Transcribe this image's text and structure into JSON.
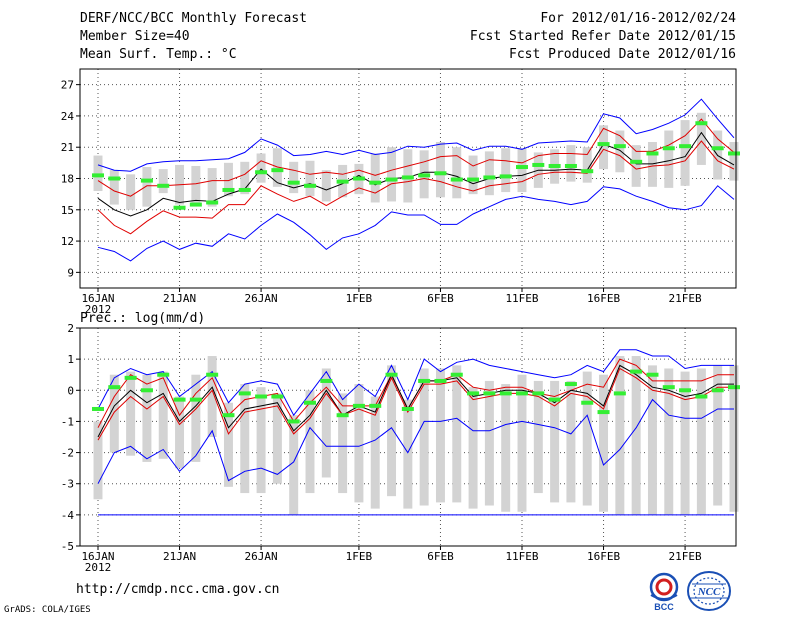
{
  "header": {
    "title": "DERF/NCC/BCC Monthly Forecast",
    "member_size": "Member Size=40",
    "variable": "Mean Surf. Temp.: °C",
    "period": "For 2012/01/16-2012/02/24",
    "start_date": "Fcst Started Refer Date 2012/01/15",
    "produced_date": "Fcst Produced Date 2012/01/16"
  },
  "precip_label": "Prec.: log(mm/d)",
  "footer": {
    "url": "http://cmdp.ncc.cma.gov.cn",
    "credit": "GrADS: COLA/IGES"
  },
  "logos": {
    "bcc": "BCC",
    "ncc": "NCC"
  },
  "colors": {
    "envelope": "#0000ff",
    "spread": "#e00000",
    "mean": "#000000",
    "observed": "#33ee33",
    "boxes": "#d3d3d3",
    "grid": "#555555"
  },
  "chart_data": [
    {
      "type": "line",
      "title": "Mean Surf. Temp.: °C",
      "xlabel": "",
      "ylabel": "°C",
      "ylim": [
        7.5,
        28.5
      ],
      "yticks": [
        9,
        12,
        15,
        18,
        21,
        24,
        27
      ],
      "xticks": [
        {
          "day": 1,
          "label": "16JAN",
          "sub": "2012"
        },
        {
          "day": 6,
          "label": "21JAN"
        },
        {
          "day": 11,
          "label": "26JAN"
        },
        {
          "day": 17,
          "label": "1FEB"
        },
        {
          "day": 22,
          "label": "6FEB"
        },
        {
          "day": 27,
          "label": "11FEB"
        },
        {
          "day": 32,
          "label": "16FEB"
        },
        {
          "day": 37,
          "label": "21FEB"
        }
      ],
      "x": [
        1,
        2,
        3,
        4,
        5,
        6,
        7,
        8,
        9,
        10,
        11,
        12,
        13,
        14,
        15,
        16,
        17,
        18,
        19,
        20,
        21,
        22,
        23,
        24,
        25,
        26,
        27,
        28,
        29,
        30,
        31,
        32,
        33,
        34,
        35,
        36,
        37,
        38,
        39,
        40
      ],
      "series": [
        {
          "name": "ensemble max",
          "values": [
            19.3,
            18.8,
            18.7,
            19.4,
            19.6,
            19.7,
            19.7,
            19.8,
            19.9,
            20.5,
            21.8,
            21.2,
            20.2,
            20.3,
            20.6,
            20.3,
            20.7,
            20.3,
            20.5,
            21.1,
            21.0,
            21.3,
            21.4,
            20.7,
            21.1,
            21.1,
            20.8,
            21.4,
            21.5,
            21.6,
            21.5,
            24.2,
            23.8,
            22.3,
            22.7,
            23.3,
            24.1,
            25.6,
            23.7,
            21.9
          ]
        },
        {
          "name": "spread upper",
          "values": [
            17.8,
            16.8,
            16.3,
            17.3,
            17.3,
            17.4,
            17.5,
            17.8,
            17.8,
            18.4,
            19.7,
            19.1,
            18.8,
            18.4,
            18.6,
            18.4,
            18.8,
            18.3,
            18.8,
            19.2,
            19.6,
            20.1,
            20.2,
            19.2,
            19.8,
            19.7,
            19.5,
            20.2,
            20.4,
            20.4,
            20.3,
            22.8,
            22.1,
            20.6,
            20.6,
            21.2,
            22.1,
            23.7,
            21.8,
            20.5
          ]
        },
        {
          "name": "ensemble mean",
          "values": [
            16.1,
            15.0,
            14.4,
            15.0,
            16.1,
            15.7,
            15.9,
            15.8,
            16.5,
            17.0,
            18.9,
            17.6,
            17.1,
            17.5,
            16.9,
            17.5,
            18.3,
            17.4,
            18.0,
            18.1,
            18.6,
            18.6,
            18.2,
            17.5,
            18.0,
            18.2,
            18.3,
            18.8,
            18.8,
            18.9,
            18.8,
            21.3,
            20.7,
            19.4,
            19.4,
            19.7,
            20.1,
            22.4,
            20.2,
            19.3
          ]
        },
        {
          "name": "spread lower",
          "values": [
            15.0,
            13.5,
            12.7,
            13.9,
            14.9,
            14.3,
            14.3,
            14.2,
            15.5,
            15.5,
            17.3,
            16.5,
            15.8,
            16.3,
            15.4,
            16.3,
            17.1,
            16.6,
            17.5,
            17.7,
            18.0,
            17.7,
            17.2,
            16.8,
            17.3,
            17.5,
            17.7,
            18.4,
            18.6,
            18.6,
            18.5,
            20.8,
            20.2,
            18.9,
            19.2,
            19.3,
            19.7,
            21.6,
            19.7,
            18.9
          ]
        },
        {
          "name": "ensemble min",
          "values": [
            11.4,
            11.0,
            10.1,
            11.3,
            12.0,
            11.2,
            11.8,
            11.5,
            12.7,
            12.2,
            13.5,
            14.6,
            13.8,
            12.6,
            11.2,
            12.3,
            12.7,
            13.5,
            14.8,
            14.5,
            14.5,
            13.6,
            13.6,
            14.6,
            15.3,
            16.0,
            16.3,
            16.0,
            15.8,
            15.5,
            15.8,
            17.2,
            17.0,
            16.3,
            15.8,
            15.2,
            15.0,
            15.4,
            17.3,
            16.0
          ]
        }
      ],
      "observed": [
        18.3,
        18.0,
        null,
        17.8,
        17.3,
        15.2,
        15.5,
        15.7,
        16.9,
        16.9,
        18.6,
        18.8,
        17.6,
        17.3,
        null,
        17.7,
        18.0,
        17.6,
        17.9,
        18.1,
        18.3,
        18.5,
        17.9,
        17.9,
        18.1,
        18.2,
        19.1,
        19.3,
        19.2,
        19.2,
        18.7,
        21.3,
        21.1,
        19.6,
        20.4,
        20.9,
        21.1,
        23.3,
        20.9,
        20.4
      ],
      "boxes": [
        [
          20.2,
          16.8
        ],
        [
          18.8,
          15.5
        ],
        [
          18.4,
          15.0
        ],
        [
          19.1,
          15.3
        ],
        [
          18.9,
          16.6
        ],
        [
          19.3,
          15.5
        ],
        [
          19.2,
          15.5
        ],
        [
          19.0,
          15.3
        ],
        [
          19.5,
          16.3
        ],
        [
          19.6,
          16.5
        ],
        [
          20.4,
          17.6
        ],
        [
          20.9,
          17.2
        ],
        [
          19.6,
          16.6
        ],
        [
          19.7,
          16.3
        ],
        [
          18.8,
          15.8
        ],
        [
          19.3,
          16.2
        ],
        [
          19.4,
          16.5
        ],
        [
          20.4,
          15.7
        ],
        [
          21.0,
          15.8
        ],
        [
          20.8,
          15.7
        ],
        [
          20.7,
          16.1
        ],
        [
          21.5,
          16.2
        ],
        [
          21.0,
          16.1
        ],
        [
          20.2,
          16.5
        ],
        [
          20.6,
          16.4
        ],
        [
          20.9,
          16.7
        ],
        [
          20.9,
          16.7
        ],
        [
          20.5,
          17.1
        ],
        [
          20.8,
          17.5
        ],
        [
          21.2,
          17.7
        ],
        [
          21.0,
          17.6
        ],
        [
          23.1,
          18.9
        ],
        [
          22.6,
          18.6
        ],
        [
          21.2,
          17.2
        ],
        [
          21.5,
          17.2
        ],
        [
          22.6,
          17.1
        ],
        [
          23.6,
          17.3
        ],
        [
          24.3,
          19.3
        ],
        [
          22.6,
          17.9
        ],
        [
          21.5,
          17.8
        ]
      ]
    },
    {
      "type": "line",
      "title": "Prec.: log(mm/d)",
      "xlabel": "",
      "ylabel": "log(mm/d)",
      "ylim": [
        -5,
        2
      ],
      "yticks": [
        -5,
        -4,
        -3,
        -2,
        -1,
        0,
        1,
        2
      ],
      "xticks": [
        {
          "day": 1,
          "label": "16JAN",
          "sub": "2012"
        },
        {
          "day": 6,
          "label": "21JAN"
        },
        {
          "day": 11,
          "label": "26JAN"
        },
        {
          "day": 17,
          "label": "1FEB"
        },
        {
          "day": 22,
          "label": "6FEB"
        },
        {
          "day": 27,
          "label": "11FEB"
        },
        {
          "day": 32,
          "label": "16FEB"
        },
        {
          "day": 37,
          "label": "21FEB"
        }
      ],
      "x": [
        1,
        2,
        3,
        4,
        5,
        6,
        7,
        8,
        9,
        10,
        11,
        12,
        13,
        14,
        15,
        16,
        17,
        18,
        19,
        20,
        21,
        22,
        23,
        24,
        25,
        26,
        27,
        28,
        29,
        30,
        31,
        32,
        33,
        34,
        35,
        36,
        37,
        38,
        39,
        40
      ],
      "series": [
        {
          "name": "ensemble max",
          "values": [
            -0.6,
            0.4,
            0.7,
            0.5,
            0.6,
            -0.2,
            0.2,
            0.6,
            -0.4,
            0.2,
            0.3,
            0.2,
            -0.8,
            -0.1,
            0.6,
            -0.3,
            0.2,
            -0.2,
            0.8,
            -0.3,
            1.0,
            0.6,
            0.9,
            1.0,
            0.8,
            0.7,
            0.6,
            0.5,
            0.4,
            0.5,
            0.8,
            0.6,
            1.3,
            1.3,
            1.1,
            1.1,
            0.7,
            0.8,
            0.8,
            0.8
          ]
        },
        {
          "name": "spread upper",
          "values": [
            -1.2,
            -0.2,
            0.5,
            0.2,
            0.4,
            -0.8,
            -0.1,
            0.4,
            -0.8,
            -0.3,
            -0.2,
            -0.1,
            -1.0,
            -0.4,
            0.1,
            -0.5,
            -0.5,
            -0.5,
            0.5,
            -0.6,
            0.3,
            0.3,
            0.5,
            0.1,
            0.0,
            0.1,
            0.1,
            -0.1,
            -0.2,
            0.0,
            0.2,
            0.1,
            1.0,
            0.8,
            0.3,
            0.3,
            0.3,
            0.3,
            0.5,
            0.5
          ]
        },
        {
          "name": "ensemble mean",
          "values": [
            -1.5,
            -0.5,
            0.0,
            -0.4,
            -0.1,
            -1.0,
            -0.5,
            0.1,
            -1.2,
            -0.6,
            -0.5,
            -0.4,
            -1.3,
            -0.8,
            0.0,
            -0.8,
            -0.5,
            -0.7,
            0.5,
            -0.6,
            0.3,
            0.3,
            0.4,
            -0.2,
            -0.1,
            0.0,
            0.0,
            -0.1,
            -0.4,
            0.0,
            -0.1,
            -0.5,
            0.8,
            0.5,
            0.1,
            0.0,
            -0.2,
            -0.1,
            0.2,
            0.2
          ]
        },
        {
          "name": "spread lower",
          "values": [
            -1.6,
            -0.7,
            -0.2,
            -0.6,
            -0.2,
            -1.1,
            -0.6,
            0.0,
            -1.4,
            -0.7,
            -0.6,
            -0.5,
            -1.4,
            -0.9,
            -0.1,
            -0.8,
            -0.6,
            -0.8,
            0.4,
            -0.7,
            0.2,
            0.2,
            0.3,
            -0.3,
            -0.2,
            -0.1,
            -0.1,
            -0.2,
            -0.5,
            -0.1,
            -0.2,
            -0.6,
            0.7,
            0.4,
            0.0,
            -0.1,
            -0.3,
            -0.2,
            0.1,
            0.1
          ]
        },
        {
          "name": "ensemble min",
          "values": [
            -3.0,
            -2.0,
            -1.8,
            -2.2,
            -1.9,
            -2.6,
            -2.1,
            -1.3,
            -2.9,
            -2.6,
            -2.5,
            -2.7,
            -2.3,
            -1.2,
            -1.8,
            -1.8,
            -1.8,
            -1.6,
            -1.2,
            -2.0,
            -1.0,
            -1.0,
            -0.9,
            -1.3,
            -1.3,
            -1.1,
            -1.0,
            -1.1,
            -1.2,
            -1.4,
            -0.8,
            -2.4,
            -1.9,
            -1.2,
            -0.3,
            -0.8,
            -0.9,
            -0.9,
            -0.6,
            -0.6
          ]
        }
      ],
      "floor": -4.0,
      "observed": [
        -0.6,
        0.1,
        0.4,
        0.0,
        0.5,
        -0.3,
        -0.3,
        0.5,
        -0.8,
        -0.1,
        -0.2,
        -0.2,
        -1.0,
        -0.4,
        0.3,
        -0.8,
        -0.5,
        -0.5,
        0.5,
        -0.6,
        0.3,
        0.3,
        0.5,
        -0.1,
        -0.1,
        -0.1,
        -0.1,
        -0.1,
        -0.3,
        0.2,
        -0.4,
        -0.7,
        -0.1,
        0.6,
        0.5,
        0.1,
        0.0,
        -0.2,
        0.0,
        0.1
      ],
      "boxes": [
        [
          -1.0,
          -3.5
        ],
        [
          0.5,
          -2.0
        ],
        [
          0.6,
          -2.1
        ],
        [
          0.5,
          -2.3
        ],
        [
          0.6,
          -2.2
        ],
        [
          -0.2,
          -2.5
        ],
        [
          0.5,
          -2.3
        ],
        [
          1.1,
          -1.5
        ],
        [
          -0.4,
          -3.1
        ],
        [
          0.2,
          -3.3
        ],
        [
          0.1,
          -3.3
        ],
        [
          -0.1,
          -3.0
        ],
        [
          -0.8,
          -4.0
        ],
        [
          0.0,
          -3.3
        ],
        [
          0.7,
          -2.8
        ],
        [
          -0.1,
          -3.3
        ],
        [
          0.2,
          -3.6
        ],
        [
          -0.2,
          -3.8
        ],
        [
          0.8,
          -3.4
        ],
        [
          -0.3,
          -3.8
        ],
        [
          0.7,
          -3.7
        ],
        [
          0.7,
          -3.6
        ],
        [
          0.8,
          -3.6
        ],
        [
          0.1,
          -3.8
        ],
        [
          0.3,
          -3.7
        ],
        [
          0.2,
          -3.9
        ],
        [
          0.5,
          -3.9
        ],
        [
          0.3,
          -3.3
        ],
        [
          0.3,
          -3.6
        ],
        [
          0.3,
          -3.6
        ],
        [
          0.6,
          -3.7
        ],
        [
          0.5,
          -3.9
        ],
        [
          1.1,
          -4.0
        ],
        [
          1.1,
          -4.0
        ],
        [
          0.8,
          -4.0
        ],
        [
          0.7,
          -4.0
        ],
        [
          0.6,
          -4.0
        ],
        [
          0.7,
          -4.0
        ],
        [
          0.8,
          -3.7
        ],
        [
          0.8,
          -3.9
        ]
      ]
    }
  ]
}
